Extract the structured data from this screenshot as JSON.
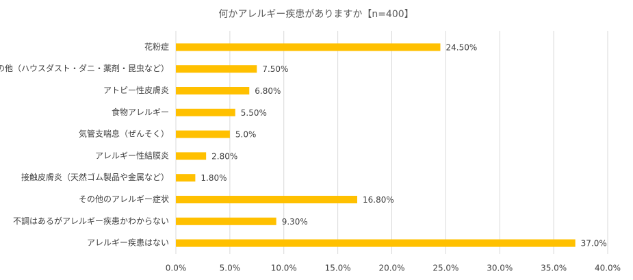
{
  "chart_data": {
    "type": "bar",
    "orientation": "horizontal",
    "title": "何かアレルギー疾患がありますか【n=400】",
    "categories": [
      "花粉症",
      "その他（ハウスダスト・ダニ・薬剤・昆虫など）",
      "アトピー性皮膚炎",
      "食物アレルギー",
      "気管支喘息（ぜんそく）",
      "アレルギー性結膜炎",
      "接触皮膚炎（天然ゴム製品や金属など）",
      "その他のアレルギー症状",
      "不調はあるがアレルギー疾患かわからない",
      "アレルギー疾患はない"
    ],
    "values": [
      24.5,
      7.5,
      6.8,
      5.5,
      5.0,
      2.8,
      1.8,
      16.8,
      9.3,
      37.0
    ],
    "value_labels": [
      "24.50%",
      "7.50%",
      "6.80%",
      "5.50%",
      "5.0%",
      "2.80%",
      "1.80%",
      "16.80%",
      "9.30%",
      "37.0%"
    ],
    "color": "#ffc000",
    "xlim": [
      0,
      40
    ],
    "xticks": [
      {
        "value": 0,
        "label": "0.0%"
      },
      {
        "value": 5,
        "label": "5.0%"
      },
      {
        "value": 10,
        "label": "10.0%"
      },
      {
        "value": 15,
        "label": "15.0%"
      },
      {
        "value": 20,
        "label": "20.0%"
      },
      {
        "value": 25,
        "label": "25.0%"
      },
      {
        "value": 30,
        "label": "30.0%"
      },
      {
        "value": 35,
        "label": "35.0%"
      },
      {
        "value": 40,
        "label": "40.0%"
      }
    ],
    "grid": true
  }
}
